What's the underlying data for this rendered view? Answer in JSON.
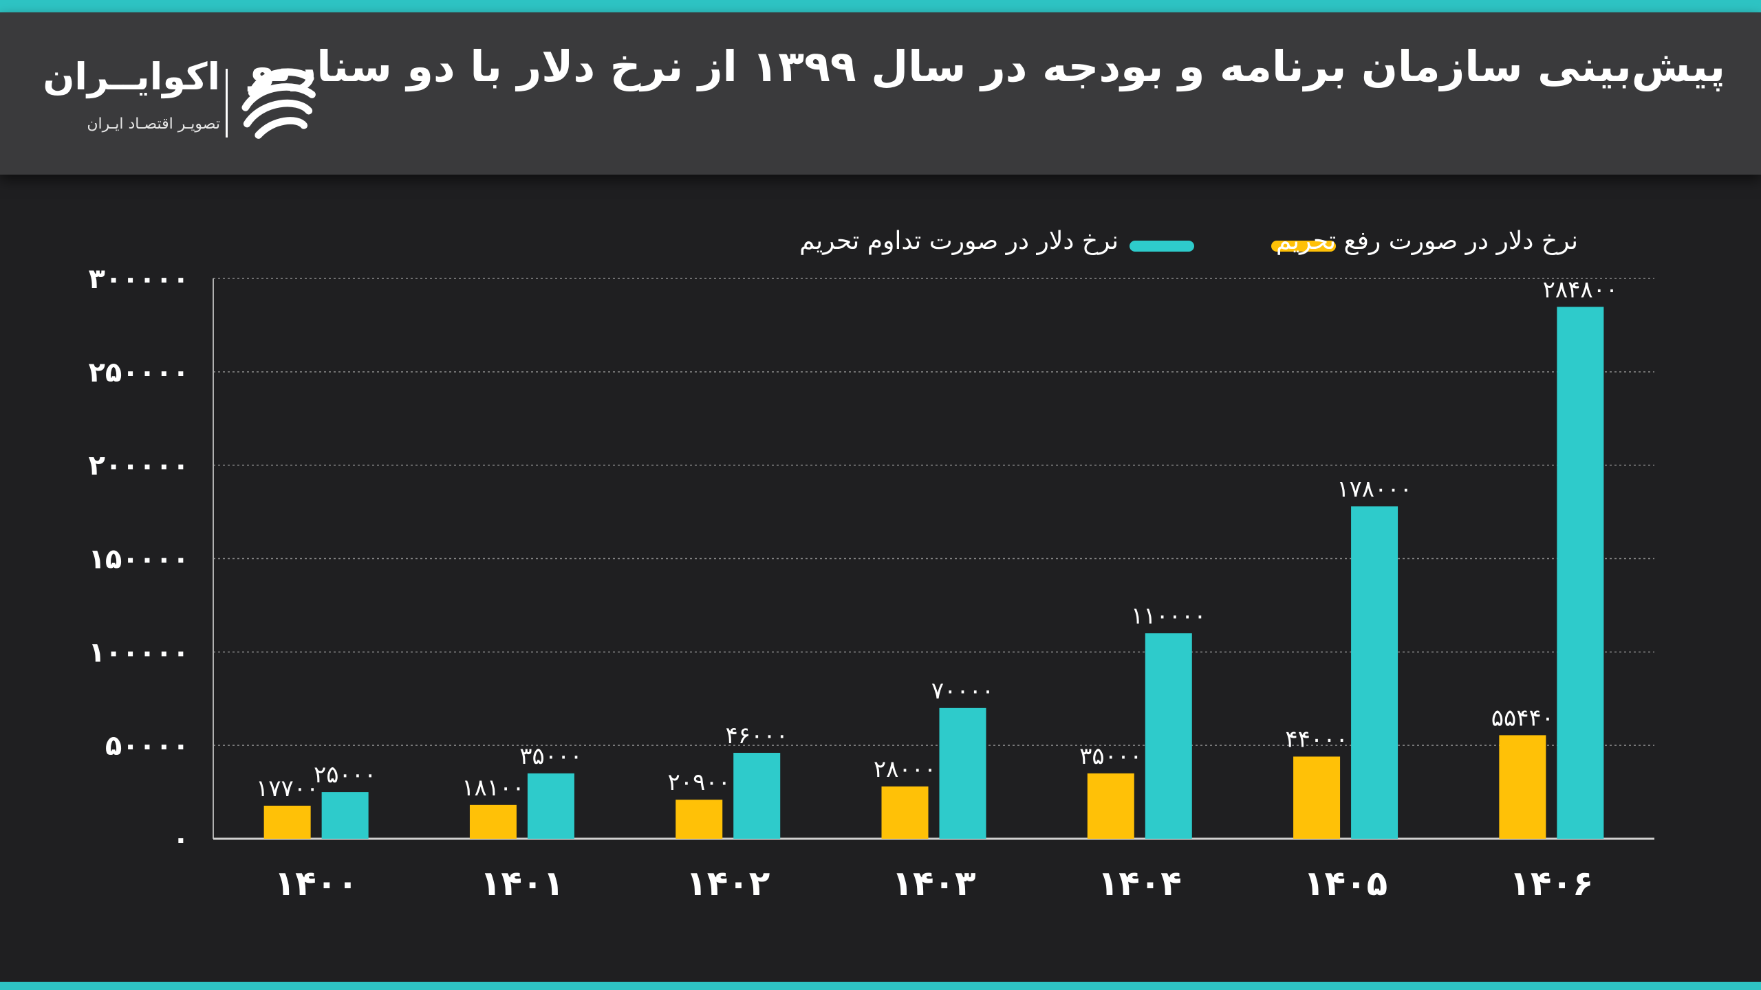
{
  "header": {
    "title": "پیش‌بینی سازمان برنامه و بودجه در سال ۱۳۹۹ از نرخ دلار با دو سناریو",
    "logo_name": "اکوایــران",
    "logo_tagline": "تصویـر اقتصـاد ایـران",
    "logo_icon": "ecoiran-swirl-icon"
  },
  "colors": {
    "background": "#1f1f21",
    "header": "#3a3a3c",
    "accent": "#2ec4c4",
    "series_lift": "#ffc107",
    "series_continue": "#2ecbcb",
    "grid": "#8a8a8a"
  },
  "chart_data": {
    "type": "bar",
    "title": "پیش‌بینی سازمان برنامه و بودجه در سال ۱۳۹۹ از نرخ دلار با دو سناریو",
    "categories": [
      "۱۴۰۰",
      "۱۴۰۱",
      "۱۴۰۲",
      "۱۴۰۳",
      "۱۴۰۴",
      "۱۴۰۵",
      "۱۴۰۶"
    ],
    "series": [
      {
        "name": "نرخ دلار در صورت رفع تحریم",
        "color": "#ffc107",
        "values": [
          17700,
          18100,
          20900,
          28000,
          35000,
          44000,
          55440
        ],
        "labels": [
          "۱۷۷۰۰",
          "۱۸۱۰۰",
          "۲۰۹۰۰",
          "۲۸۰۰۰",
          "۳۵۰۰۰",
          "۴۴۰۰۰",
          "۵۵۴۴۰"
        ]
      },
      {
        "name": "نرخ دلار در صورت تداوم تحریم",
        "color": "#2ecbcb",
        "values": [
          25000,
          35000,
          46000,
          70000,
          110000,
          178000,
          284800
        ],
        "labels": [
          "۲۵۰۰۰",
          "۳۵۰۰۰",
          "۴۶۰۰۰",
          "۷۰۰۰۰",
          "۱۱۰۰۰۰",
          "۱۷۸۰۰۰",
          "۲۸۴۸۰۰"
        ]
      }
    ],
    "ylim": [
      0,
      300000
    ],
    "yticks": [
      0,
      50000,
      100000,
      150000,
      200000,
      250000,
      300000
    ],
    "ytick_labels": [
      "۰",
      "۵۰۰۰۰",
      "۱۰۰۰۰۰",
      "۱۵۰۰۰۰",
      "۲۰۰۰۰۰",
      "۲۵۰۰۰۰",
      "۳۰۰۰۰۰"
    ],
    "grid": "horizontal-dotted",
    "legend_position": "top",
    "xlabel": "",
    "ylabel": ""
  }
}
